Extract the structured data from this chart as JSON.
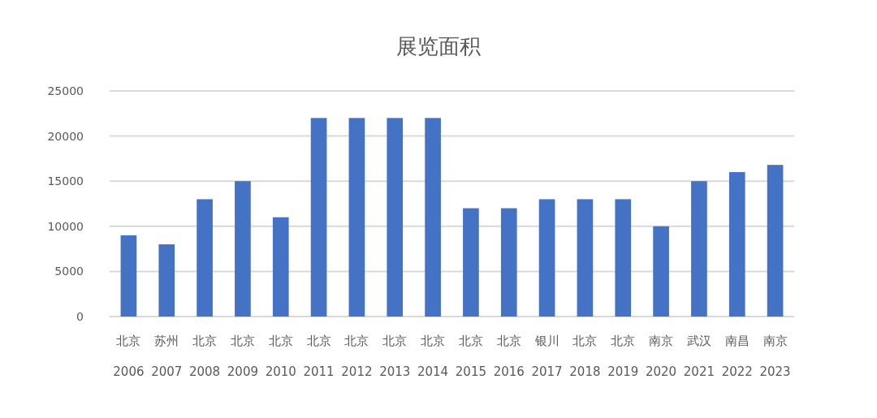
{
  "chart_data": {
    "type": "bar",
    "title": "展览面积",
    "categories": [
      "北京\n2006",
      "苏州\n2007",
      "北京\n2008",
      "北京\n2009",
      "北京\n2010",
      "北京\n2011",
      "北京\n2012",
      "北京\n2013",
      "北京\n2014",
      "北京\n2015",
      "北京\n2016",
      "银川\n2017",
      "北京\n2018",
      "北京\n2019",
      "南京\n2020",
      "武汉\n2021",
      "南昌\n2022",
      "南京\n2023"
    ],
    "values": [
      9000,
      8000,
      13000,
      15000,
      11000,
      22000,
      22000,
      22000,
      22000,
      12000,
      12000,
      13000,
      13000,
      13000,
      10000,
      15000,
      16000,
      16800
    ],
    "color": "#4472c4",
    "ylim": [
      0,
      25000
    ],
    "yticks": [
      0,
      5000,
      10000,
      15000,
      20000,
      25000
    ],
    "grid": "y"
  }
}
